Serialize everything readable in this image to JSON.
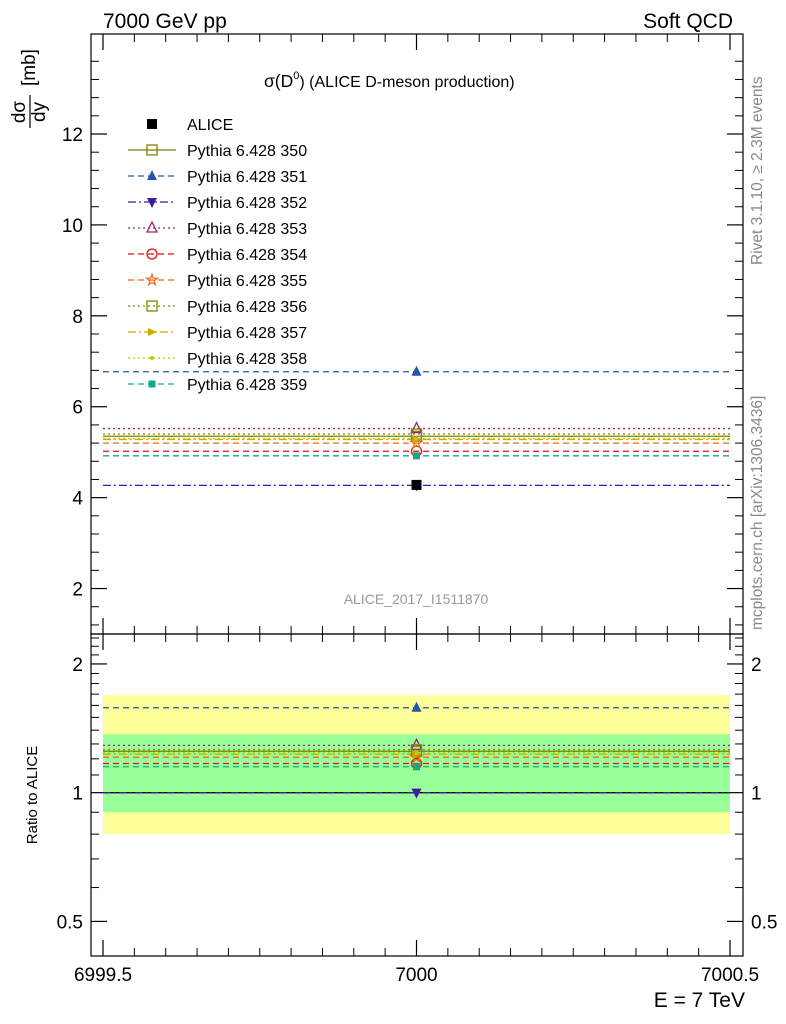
{
  "header": {
    "left": "7000 GeV pp",
    "right": "Soft QCD"
  },
  "side_labels": {
    "rivet": "Rivet 3.1.10, ≥ 2.3M events",
    "mcplots": "mcplots.cern.ch [arXiv:1306.3436]"
  },
  "chart_data": [
    {
      "type": "scatter",
      "title": "σ(D⁰) (ALICE D-meson production)",
      "title_parts": {
        "sigma": "σ(D",
        "superscript": "0",
        "rest": ") (ALICE D-meson production)"
      },
      "ylabel": "dσ/dy [mb]",
      "ylabel_parts": {
        "num": "dσ",
        "den": "dy",
        "unit": "[mb]"
      },
      "analysis_label": "ALICE_2017_I1511870",
      "xlim": [
        6999.5,
        7000.5
      ],
      "ylim": [
        1.0,
        14.2
      ],
      "yticks": [
        2,
        4,
        6,
        8,
        10,
        12
      ],
      "ytick_labels": [
        "2",
        "4",
        "6",
        "8",
        "10",
        "12"
      ],
      "x": [
        7000
      ],
      "series": [
        {
          "name": "ALICE",
          "values": [
            4.28
          ],
          "color": "#000000",
          "marker": "square-filled",
          "line": "none"
        },
        {
          "name": "Pythia 6.428 350",
          "values": [
            5.35
          ],
          "color": "#808000",
          "marker": "square-open",
          "line": "solid"
        },
        {
          "name": "Pythia 6.428 351",
          "values": [
            6.77
          ],
          "color": "#1f5aa6",
          "marker": "triangle-up-filled",
          "line": "dashed"
        },
        {
          "name": "Pythia 6.428 352",
          "values": [
            4.27
          ],
          "color": "#3b1c9e",
          "marker": "triangle-down-filled",
          "line": "dashdot"
        },
        {
          "name": "Pythia 6.428 353",
          "values": [
            5.52
          ],
          "color": "#a0207a",
          "marker": "triangle-up-open",
          "line": "dotted"
        },
        {
          "name": "Pythia 6.428 354",
          "values": [
            5.02
          ],
          "color": "#dd1111",
          "marker": "circle-open",
          "line": "dashed"
        },
        {
          "name": "Pythia 6.428 355",
          "values": [
            5.2
          ],
          "color": "#ee6611",
          "marker": "star-open",
          "line": "dashed"
        },
        {
          "name": "Pythia 6.428 356",
          "values": [
            5.4
          ],
          "color": "#7a8c00",
          "marker": "square-open",
          "line": "dotted"
        },
        {
          "name": "Pythia 6.428 357",
          "values": [
            5.28
          ],
          "color": "#ccaa00",
          "marker": "triangle-right",
          "line": "dashdot"
        },
        {
          "name": "Pythia 6.428 358",
          "values": [
            5.3
          ],
          "color": "#bbcc00",
          "marker": "dot",
          "line": "dotted"
        },
        {
          "name": "Pythia 6.428 359",
          "values": [
            4.92
          ],
          "color": "#11aa88",
          "marker": "square-small-filled",
          "line": "dashed"
        }
      ]
    },
    {
      "type": "scatter",
      "ylabel": "Ratio to ALICE",
      "xlabel": "E = 7 TeV",
      "xlim": [
        6999.5,
        7000.5
      ],
      "xticks": [
        6999.5,
        7000,
        7000.5
      ],
      "xtick_labels": [
        "6999.5",
        "7000",
        "7000.5"
      ],
      "ylim": [
        0.415,
        2.35
      ],
      "yscale": "log",
      "yticks": [
        0.5,
        1,
        2
      ],
      "ytick_labels": [
        "0.5",
        "1",
        "2"
      ],
      "bands": [
        {
          "name": "total uncertainty",
          "low": 0.8,
          "high": 1.69,
          "color": "#ffff99"
        },
        {
          "name": "statistical uncertainty",
          "low": 0.9,
          "high": 1.37,
          "color": "#99ff99"
        }
      ],
      "x": [
        7000
      ],
      "series": [
        {
          "name": "Pythia 6.428 350",
          "values": [
            1.25
          ]
        },
        {
          "name": "Pythia 6.428 351",
          "values": [
            1.58
          ]
        },
        {
          "name": "Pythia 6.428 352",
          "values": [
            1.0
          ]
        },
        {
          "name": "Pythia 6.428 353",
          "values": [
            1.29
          ]
        },
        {
          "name": "Pythia 6.428 354",
          "values": [
            1.17
          ]
        },
        {
          "name": "Pythia 6.428 355",
          "values": [
            1.21
          ]
        },
        {
          "name": "Pythia 6.428 356",
          "values": [
            1.26
          ]
        },
        {
          "name": "Pythia 6.428 357",
          "values": [
            1.23
          ]
        },
        {
          "name": "Pythia 6.428 358",
          "values": [
            1.24
          ]
        },
        {
          "name": "Pythia 6.428 359",
          "values": [
            1.15
          ]
        }
      ]
    }
  ]
}
